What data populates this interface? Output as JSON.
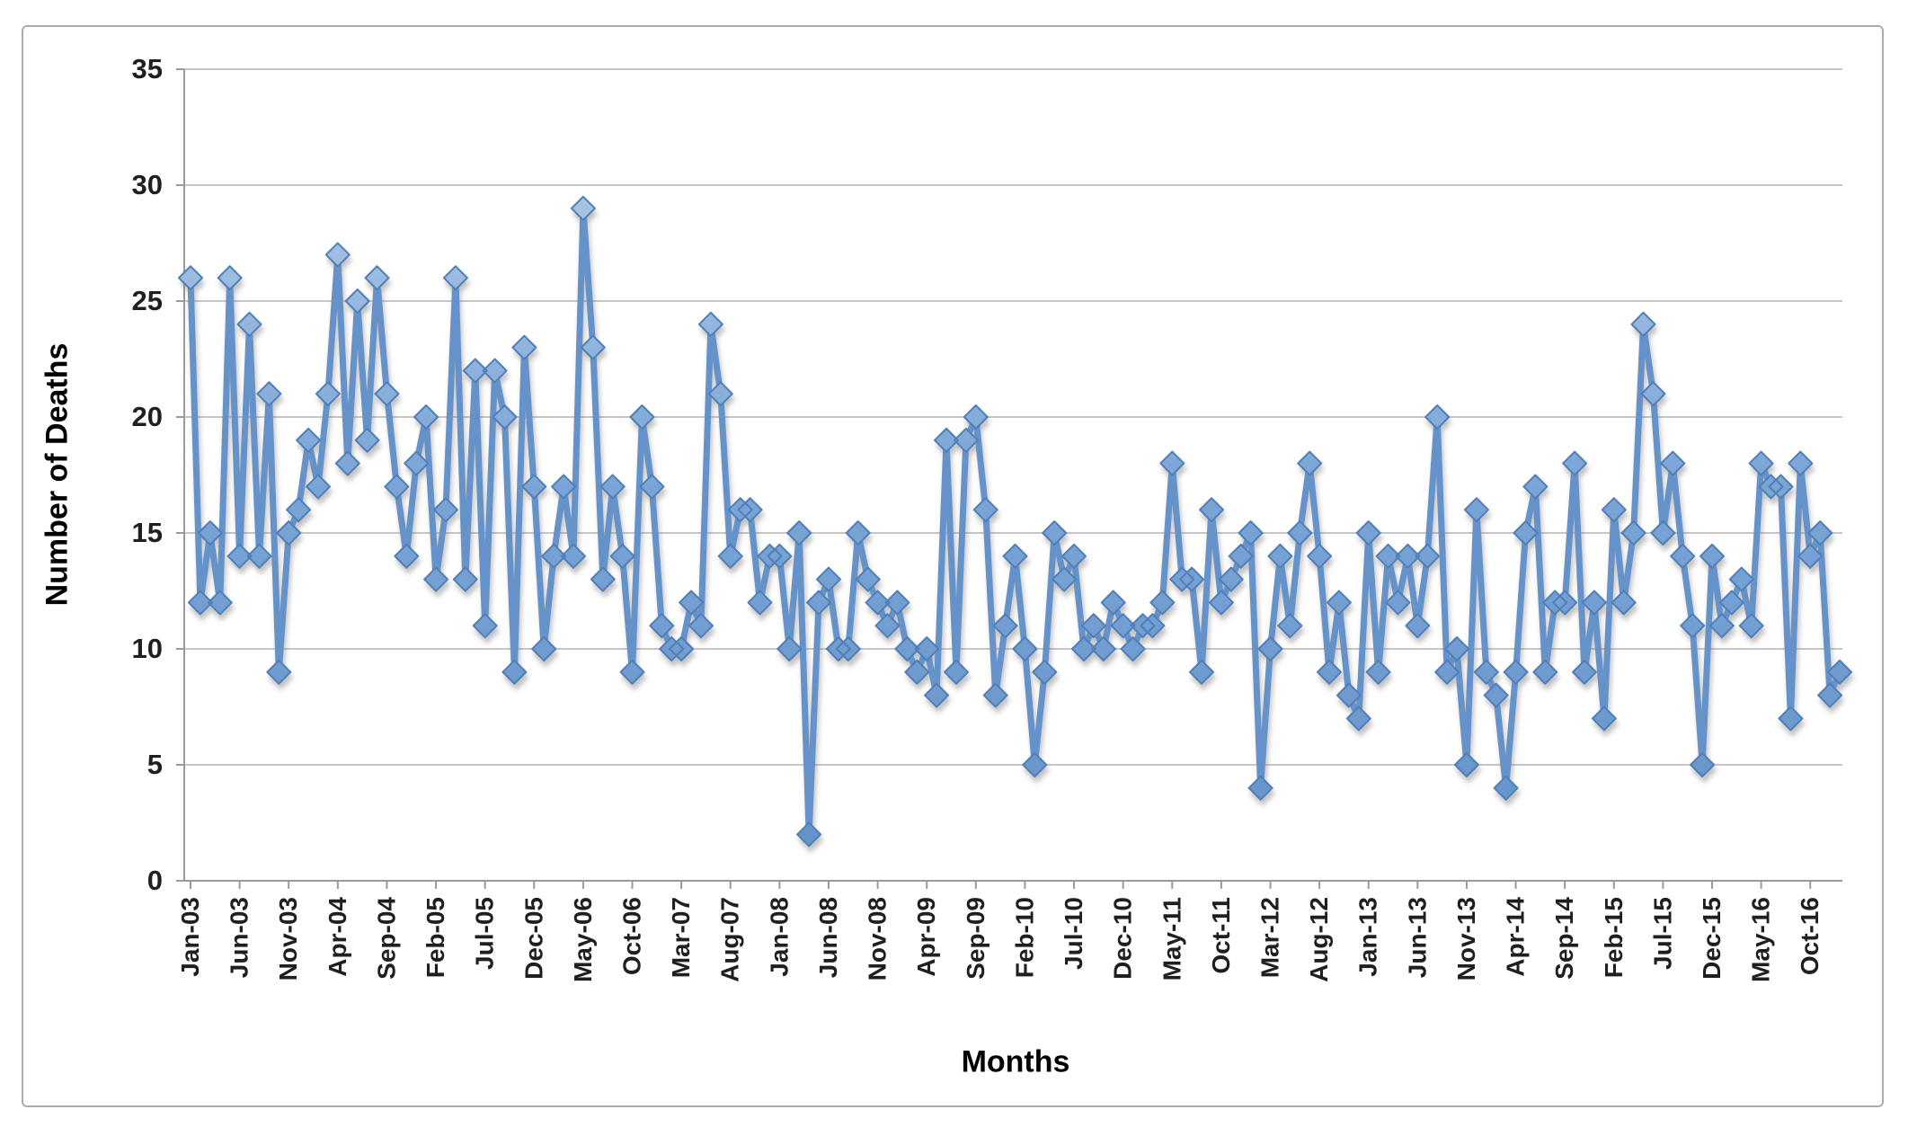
{
  "chart_data": {
    "type": "line",
    "title": "",
    "xlabel": "Months",
    "ylabel": "Number of Deaths",
    "ylim": [
      0,
      35
    ],
    "y_tick_step": 5,
    "y_tick_labels": [
      "0",
      "5",
      "10",
      "15",
      "20",
      "25",
      "30",
      "35"
    ],
    "grid": true,
    "legend": "none",
    "x_tick_every": 5,
    "x_tick_labels": [
      "Jan-03",
      "Jun-03",
      "Nov-03",
      "Apr-04",
      "Sep-04",
      "Feb-05",
      "Jul-05",
      "Dec-05",
      "May-06",
      "Oct-06",
      "Mar-07",
      "Aug-07",
      "Jan-08",
      "Jun-08",
      "Nov-08",
      "Apr-09",
      "Sep-09",
      "Feb-10",
      "Jul-10",
      "Dec-10",
      "May-11",
      "Oct-11",
      "Mar-12",
      "Aug-12",
      "Jan-13",
      "Jun-13",
      "Nov-13",
      "Apr-14",
      "Sep-14",
      "Feb-15",
      "Jul-15",
      "Dec-15",
      "May-16",
      "Oct-16"
    ],
    "series_name": "Number of Deaths",
    "values": [
      26,
      12,
      15,
      12,
      26,
      14,
      24,
      14,
      21,
      9,
      15,
      16,
      19,
      17,
      21,
      27,
      18,
      25,
      19,
      26,
      21,
      17,
      14,
      18,
      20,
      13,
      16,
      26,
      13,
      22,
      11,
      22,
      20,
      9,
      23,
      17,
      10,
      14,
      17,
      14,
      29,
      23,
      13,
      17,
      14,
      9,
      20,
      17,
      11,
      10,
      10,
      12,
      11,
      24,
      21,
      14,
      16,
      16,
      12,
      14,
      14,
      10,
      15,
      2,
      12,
      13,
      10,
      10,
      15,
      13,
      12,
      11,
      12,
      10,
      9,
      10,
      8,
      19,
      9,
      19,
      20,
      16,
      8,
      11,
      14,
      10,
      5,
      9,
      15,
      13,
      14,
      10,
      11,
      10,
      12,
      11,
      10,
      11,
      11,
      12,
      18,
      13,
      13,
      9,
      16,
      12,
      13,
      14,
      15,
      4,
      10,
      14,
      11,
      15,
      18,
      14,
      9,
      12,
      8,
      7,
      15,
      9,
      14,
      12,
      14,
      11,
      14,
      20,
      9,
      10,
      5,
      16,
      9,
      8,
      4,
      9,
      15,
      17,
      9,
      12,
      12,
      18,
      9,
      12,
      7,
      16,
      12,
      15,
      24,
      21,
      15,
      18,
      14,
      11,
      5,
      14,
      11,
      12,
      13,
      11,
      18,
      17,
      17,
      7,
      18,
      14,
      15,
      8,
      9
    ],
    "colors": {
      "line": "#6593c9",
      "marker_fill": "#7aa4d6",
      "marker_fill_light": "#a8c4e4",
      "marker_edge": "#4f7fb8",
      "grid": "#c6c6c6",
      "axis": "#9a9a9a",
      "tick_label": "#1f1f1f",
      "axis_title": "#000000"
    }
  }
}
